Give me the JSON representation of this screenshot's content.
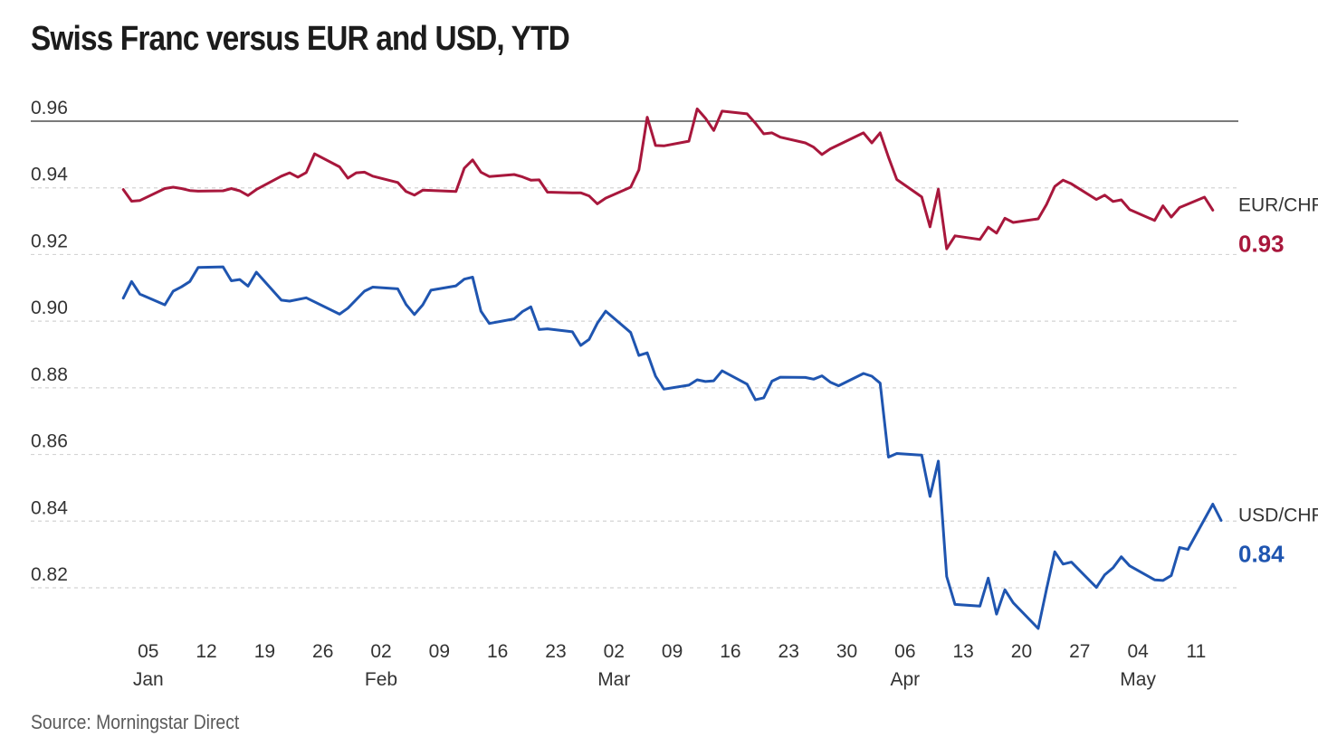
{
  "chart_data": {
    "type": "line",
    "title": "Swiss Franc versus EUR and USD, YTD",
    "source": "Source: Morningstar Direct",
    "xlabel": "",
    "ylabel": "",
    "ylim": [
      0.806,
      0.964
    ],
    "yticks": [
      0.82,
      0.84,
      0.86,
      0.88,
      0.9,
      0.92,
      0.94,
      0.96
    ],
    "ytick_labels": [
      "0.82",
      "0.84",
      "0.86",
      "0.88",
      "0.90",
      "0.92",
      "0.94",
      "0.96"
    ],
    "xlim": [
      "2025-01-01",
      "2025-05-14"
    ],
    "xticks": [
      {
        "date": "2025-01-05",
        "day": "05",
        "month": "Jan"
      },
      {
        "date": "2025-01-12",
        "day": "12",
        "month": ""
      },
      {
        "date": "2025-01-19",
        "day": "19",
        "month": ""
      },
      {
        "date": "2025-01-26",
        "day": "26",
        "month": ""
      },
      {
        "date": "2025-02-02",
        "day": "02",
        "month": "Feb"
      },
      {
        "date": "2025-02-09",
        "day": "09",
        "month": ""
      },
      {
        "date": "2025-02-16",
        "day": "16",
        "month": ""
      },
      {
        "date": "2025-02-23",
        "day": "23",
        "month": ""
      },
      {
        "date": "2025-03-02",
        "day": "02",
        "month": "Mar"
      },
      {
        "date": "2025-03-09",
        "day": "09",
        "month": ""
      },
      {
        "date": "2025-03-16",
        "day": "16",
        "month": ""
      },
      {
        "date": "2025-03-23",
        "day": "23",
        "month": ""
      },
      {
        "date": "2025-03-30",
        "day": "30",
        "month": ""
      },
      {
        "date": "2025-04-06",
        "day": "06",
        "month": "Apr"
      },
      {
        "date": "2025-04-13",
        "day": "13",
        "month": ""
      },
      {
        "date": "2025-04-20",
        "day": "20",
        "month": ""
      },
      {
        "date": "2025-04-27",
        "day": "27",
        "month": ""
      },
      {
        "date": "2025-05-04",
        "day": "04",
        "month": "May"
      },
      {
        "date": "2025-05-11",
        "day": "11",
        "month": ""
      }
    ],
    "grid": "horizontal-dashed",
    "legend": "end-of-line labels right",
    "series": [
      {
        "name": "EUR/CHF",
        "end_value_label": "0.93",
        "color": "#a8173c",
        "points": [
          [
            "2025-01-02",
            0.9395
          ],
          [
            "2025-01-03",
            0.936
          ],
          [
            "2025-01-04",
            0.9362
          ],
          [
            "2025-01-07",
            0.9398
          ],
          [
            "2025-01-08",
            0.9402
          ],
          [
            "2025-01-09",
            0.9398
          ],
          [
            "2025-01-10",
            0.9392
          ],
          [
            "2025-01-11",
            0.939
          ],
          [
            "2025-01-14",
            0.9391
          ],
          [
            "2025-01-15",
            0.9398
          ],
          [
            "2025-01-16",
            0.9391
          ],
          [
            "2025-01-17",
            0.9377
          ],
          [
            "2025-01-18",
            0.9395
          ],
          [
            "2025-01-21",
            0.9435
          ],
          [
            "2025-01-22",
            0.9445
          ],
          [
            "2025-01-23",
            0.9432
          ],
          [
            "2025-01-24",
            0.9446
          ],
          [
            "2025-01-25",
            0.9502
          ],
          [
            "2025-01-28",
            0.9463
          ],
          [
            "2025-01-29",
            0.9429
          ],
          [
            "2025-01-30",
            0.9445
          ],
          [
            "2025-01-31",
            0.9447
          ],
          [
            "2025-02-01",
            0.9435
          ],
          [
            "2025-02-04",
            0.9416
          ],
          [
            "2025-02-05",
            0.9389
          ],
          [
            "2025-02-06",
            0.9378
          ],
          [
            "2025-02-07",
            0.9393
          ],
          [
            "2025-02-11",
            0.9389
          ],
          [
            "2025-02-12",
            0.9459
          ],
          [
            "2025-02-13",
            0.9484
          ],
          [
            "2025-02-14",
            0.9447
          ],
          [
            "2025-02-15",
            0.9434
          ],
          [
            "2025-02-18",
            0.944
          ],
          [
            "2025-02-19",
            0.9433
          ],
          [
            "2025-02-20",
            0.9423
          ],
          [
            "2025-02-21",
            0.9424
          ],
          [
            "2025-02-22",
            0.9387
          ],
          [
            "2025-02-25",
            0.9385
          ],
          [
            "2025-02-26",
            0.9385
          ],
          [
            "2025-02-27",
            0.9376
          ],
          [
            "2025-02-28",
            0.9352
          ],
          [
            "2025-03-01",
            0.9369
          ],
          [
            "2025-03-04",
            0.9402
          ],
          [
            "2025-03-05",
            0.9454
          ],
          [
            "2025-03-06",
            0.9612
          ],
          [
            "2025-03-07",
            0.9527
          ],
          [
            "2025-03-08",
            0.9526
          ],
          [
            "2025-03-11",
            0.954
          ],
          [
            "2025-03-12",
            0.9637
          ],
          [
            "2025-03-13",
            0.9609
          ],
          [
            "2025-03-14",
            0.9572
          ],
          [
            "2025-03-15",
            0.963
          ],
          [
            "2025-03-18",
            0.9622
          ],
          [
            "2025-03-19",
            0.9594
          ],
          [
            "2025-03-20",
            0.9562
          ],
          [
            "2025-03-21",
            0.9565
          ],
          [
            "2025-03-22",
            0.9552
          ],
          [
            "2025-03-25",
            0.9535
          ],
          [
            "2025-03-26",
            0.9522
          ],
          [
            "2025-03-27",
            0.95
          ],
          [
            "2025-03-28",
            0.9517
          ],
          [
            "2025-04-01",
            0.9565
          ],
          [
            "2025-04-02",
            0.9535
          ],
          [
            "2025-04-03",
            0.9565
          ],
          [
            "2025-04-04",
            0.9492
          ],
          [
            "2025-04-05",
            0.9425
          ],
          [
            "2025-04-08",
            0.9373
          ],
          [
            "2025-04-09",
            0.9283
          ],
          [
            "2025-04-10",
            0.9396
          ],
          [
            "2025-04-11",
            0.9217
          ],
          [
            "2025-04-12",
            0.9256
          ],
          [
            "2025-04-15",
            0.9245
          ],
          [
            "2025-04-16",
            0.9282
          ],
          [
            "2025-04-17",
            0.9264
          ],
          [
            "2025-04-18",
            0.9309
          ],
          [
            "2025-04-19",
            0.9296
          ],
          [
            "2025-04-22",
            0.9307
          ],
          [
            "2025-04-23",
            0.935
          ],
          [
            "2025-04-24",
            0.9404
          ],
          [
            "2025-04-25",
            0.9423
          ],
          [
            "2025-04-26",
            0.9412
          ],
          [
            "2025-04-29",
            0.9365
          ],
          [
            "2025-04-30",
            0.9378
          ],
          [
            "2025-05-01",
            0.9359
          ],
          [
            "2025-05-02",
            0.9364
          ],
          [
            "2025-05-03",
            0.9335
          ],
          [
            "2025-05-06",
            0.9302
          ],
          [
            "2025-05-07",
            0.9346
          ],
          [
            "2025-05-08",
            0.9312
          ],
          [
            "2025-05-09",
            0.9341
          ],
          [
            "2025-05-12",
            0.9372
          ],
          [
            "2025-05-13",
            0.9333
          ]
        ]
      },
      {
        "name": "USD/CHF",
        "end_value_label": "0.84",
        "color": "#1f55b0",
        "points": [
          [
            "2025-01-02",
            0.9069
          ],
          [
            "2025-01-03",
            0.9119
          ],
          [
            "2025-01-04",
            0.9081
          ],
          [
            "2025-01-07",
            0.9049
          ],
          [
            "2025-01-08",
            0.909
          ],
          [
            "2025-01-09",
            0.9103
          ],
          [
            "2025-01-10",
            0.9119
          ],
          [
            "2025-01-11",
            0.9161
          ],
          [
            "2025-01-14",
            0.9163
          ],
          [
            "2025-01-15",
            0.9121
          ],
          [
            "2025-01-16",
            0.9125
          ],
          [
            "2025-01-17",
            0.9105
          ],
          [
            "2025-01-18",
            0.9147
          ],
          [
            "2025-01-21",
            0.9063
          ],
          [
            "2025-01-22",
            0.906
          ],
          [
            "2025-01-24",
            0.907
          ],
          [
            "2025-01-28",
            0.9021
          ],
          [
            "2025-01-29",
            0.9039
          ],
          [
            "2025-01-31",
            0.909
          ],
          [
            "2025-02-01",
            0.9102
          ],
          [
            "2025-02-04",
            0.9097
          ],
          [
            "2025-02-05",
            0.905
          ],
          [
            "2025-02-06",
            0.902
          ],
          [
            "2025-02-07",
            0.9049
          ],
          [
            "2025-02-08",
            0.9093
          ],
          [
            "2025-02-11",
            0.9106
          ],
          [
            "2025-02-12",
            0.9126
          ],
          [
            "2025-02-13",
            0.9132
          ],
          [
            "2025-02-14",
            0.903
          ],
          [
            "2025-02-15",
            0.8993
          ],
          [
            "2025-02-18",
            0.9007
          ],
          [
            "2025-02-19",
            0.9029
          ],
          [
            "2025-02-20",
            0.9043
          ],
          [
            "2025-02-21",
            0.8975
          ],
          [
            "2025-02-22",
            0.8977
          ],
          [
            "2025-02-25",
            0.8968
          ],
          [
            "2025-02-26",
            0.8927
          ],
          [
            "2025-02-27",
            0.8945
          ],
          [
            "2025-02-28",
            0.8994
          ],
          [
            "2025-03-01",
            0.903
          ],
          [
            "2025-03-04",
            0.8966
          ],
          [
            "2025-03-05",
            0.8897
          ],
          [
            "2025-03-06",
            0.8905
          ],
          [
            "2025-03-07",
            0.8835
          ],
          [
            "2025-03-08",
            0.8796
          ],
          [
            "2025-03-11",
            0.8808
          ],
          [
            "2025-03-12",
            0.8824
          ],
          [
            "2025-03-13",
            0.8819
          ],
          [
            "2025-03-14",
            0.8821
          ],
          [
            "2025-03-15",
            0.8851
          ],
          [
            "2025-03-18",
            0.8811
          ],
          [
            "2025-03-19",
            0.8764
          ],
          [
            "2025-03-20",
            0.877
          ],
          [
            "2025-03-21",
            0.882
          ],
          [
            "2025-03-22",
            0.8832
          ],
          [
            "2025-03-25",
            0.8831
          ],
          [
            "2025-03-26",
            0.8826
          ],
          [
            "2025-03-27",
            0.8836
          ],
          [
            "2025-03-28",
            0.8817
          ],
          [
            "2025-03-29",
            0.8806
          ],
          [
            "2025-04-01",
            0.8843
          ],
          [
            "2025-04-02",
            0.8835
          ],
          [
            "2025-04-03",
            0.8814
          ],
          [
            "2025-04-04",
            0.8592
          ],
          [
            "2025-04-05",
            0.8603
          ],
          [
            "2025-04-08",
            0.8598
          ],
          [
            "2025-04-09",
            0.8474
          ],
          [
            "2025-04-10",
            0.858
          ],
          [
            "2025-04-11",
            0.8234
          ],
          [
            "2025-04-12",
            0.815
          ],
          [
            "2025-04-15",
            0.8145
          ],
          [
            "2025-04-16",
            0.8229
          ],
          [
            "2025-04-17",
            0.8121
          ],
          [
            "2025-04-18",
            0.8194
          ],
          [
            "2025-04-19",
            0.8155
          ],
          [
            "2025-04-22",
            0.8078
          ],
          [
            "2025-04-23",
            0.8196
          ],
          [
            "2025-04-24",
            0.8308
          ],
          [
            "2025-04-25",
            0.8271
          ],
          [
            "2025-04-26",
            0.8277
          ],
          [
            "2025-04-29",
            0.8201
          ],
          [
            "2025-04-30",
            0.8239
          ],
          [
            "2025-05-01",
            0.826
          ],
          [
            "2025-05-02",
            0.8293
          ],
          [
            "2025-05-03",
            0.8266
          ],
          [
            "2025-05-06",
            0.8224
          ],
          [
            "2025-05-07",
            0.8222
          ],
          [
            "2025-05-08",
            0.8237
          ],
          [
            "2025-05-09",
            0.8321
          ],
          [
            "2025-05-10",
            0.8315
          ],
          [
            "2025-05-13",
            0.8451
          ],
          [
            "2025-05-14",
            0.8402
          ]
        ]
      }
    ]
  }
}
